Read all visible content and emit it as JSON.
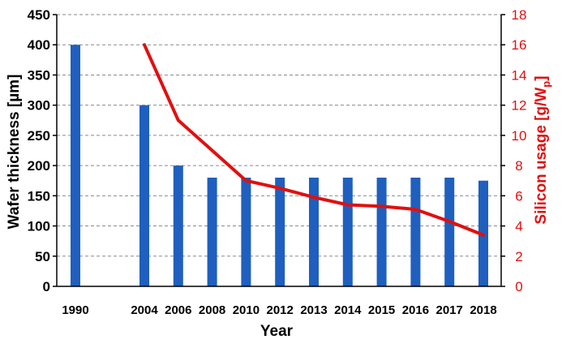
{
  "chart_data": {
    "type": "bar",
    "categories": [
      "1990",
      "2004",
      "2006",
      "2008",
      "2010",
      "2012",
      "2013",
      "2014",
      "2015",
      "2016",
      "2017",
      "2018"
    ],
    "xlabel": "Year",
    "ylabel": "Wafer thickness [µm]",
    "y2label_main": "Silicon usage [g/W",
    "y2label_sub": "p",
    "y2label_close": "]",
    "ylim": [
      0,
      450
    ],
    "y2lim": [
      0,
      18
    ],
    "yticks": [
      0,
      50,
      100,
      150,
      200,
      250,
      300,
      350,
      400,
      450
    ],
    "y2ticks": [
      0,
      2,
      4,
      6,
      8,
      10,
      12,
      14,
      16,
      18
    ],
    "grid": "horizontal dashed",
    "series": [
      {
        "type": "bar",
        "axis": "left",
        "color": "#1f5fbf",
        "values": [
          400,
          300,
          200,
          180,
          180,
          180,
          180,
          180,
          180,
          180,
          180,
          175
        ]
      },
      {
        "type": "line",
        "axis": "right",
        "color": "#e01010",
        "values": [
          null,
          16,
          11,
          9,
          7,
          6.5,
          5.9,
          5.4,
          5.3,
          5.1,
          4.3,
          3.4
        ]
      }
    ]
  }
}
